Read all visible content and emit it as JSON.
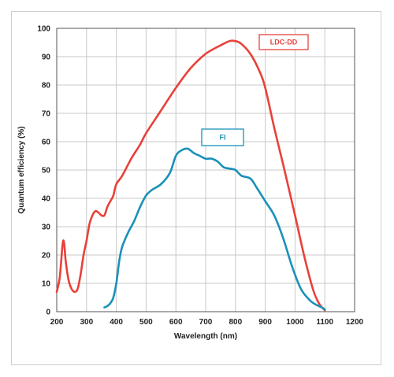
{
  "chart_data": {
    "type": "line",
    "title": "",
    "xlabel": "Wavelength (nm)",
    "ylabel": "Quantum efficiency (%)",
    "xlim": [
      200,
      1200
    ],
    "ylim": [
      0,
      100
    ],
    "xticks": [
      200,
      300,
      400,
      500,
      600,
      700,
      800,
      900,
      1000,
      1100,
      1200
    ],
    "yticks": [
      0,
      10,
      20,
      30,
      40,
      50,
      60,
      70,
      80,
      90,
      100
    ],
    "grid": true,
    "legend": "labels-on-chart",
    "series": [
      {
        "name": "LDC-DD",
        "color": "#e8413a",
        "x": [
          200,
          210,
          220,
          225,
          230,
          240,
          250,
          260,
          270,
          280,
          290,
          300,
          310,
          320,
          330,
          340,
          350,
          360,
          370,
          380,
          390,
          400,
          420,
          450,
          480,
          500,
          550,
          600,
          650,
          700,
          750,
          780,
          800,
          820,
          850,
          880,
          900,
          930,
          960,
          1000,
          1030,
          1060,
          1080,
          1100
        ],
        "y": [
          7,
          12,
          24,
          24,
          18,
          11,
          8,
          7,
          8,
          13,
          20,
          25,
          31,
          34,
          35.5,
          35,
          34,
          34,
          37,
          39,
          41,
          45,
          48,
          54,
          59,
          63,
          71,
          79,
          86,
          91,
          94,
          95.5,
          95.5,
          94.5,
          91,
          85,
          79,
          65,
          52,
          34,
          20,
          8,
          3,
          0.5
        ]
      },
      {
        "name": "FI",
        "color": "#1a91b8",
        "x": [
          360,
          370,
          380,
          390,
          400,
          410,
          420,
          440,
          460,
          480,
          500,
          520,
          550,
          580,
          600,
          620,
          640,
          660,
          680,
          700,
          720,
          740,
          760,
          780,
          800,
          820,
          850,
          870,
          900,
          930,
          960,
          990,
          1020,
          1050,
          1070,
          1090,
          1100
        ],
        "y": [
          1.5,
          2,
          3,
          5,
          10,
          18,
          23,
          28,
          32,
          37,
          41,
          43,
          45,
          49,
          55,
          57,
          57.5,
          56,
          55,
          54,
          54,
          53,
          51,
          50.5,
          50,
          48,
          47,
          44,
          39,
          34,
          26,
          16,
          8,
          4,
          2.5,
          1.5,
          0.8
        ]
      }
    ]
  }
}
